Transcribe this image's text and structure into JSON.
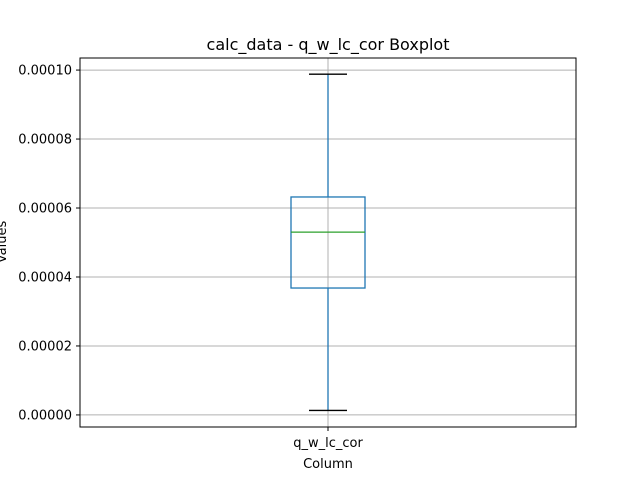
{
  "chart_data": {
    "type": "box",
    "title": "calc_data - q_w_lc_cor Boxplot",
    "xlabel": "Column",
    "ylabel": "Values",
    "categories": [
      "q_w_lc_cor"
    ],
    "series": [
      {
        "name": "q_w_lc_cor",
        "whisker_low": 1.3e-06,
        "q1": 3.68e-05,
        "median": 5.3e-05,
        "q3": 6.32e-05,
        "whisker_high": 9.88e-05
      }
    ],
    "ylim": [
      -3.5e-06,
      0.0001035
    ],
    "yticks": [
      0,
      2e-05,
      4e-05,
      6e-05,
      8e-05,
      0.0001
    ],
    "ytick_labels": [
      "0.00000",
      "0.00002",
      "0.00004",
      "0.00006",
      "0.00008",
      "0.00010"
    ],
    "grid": true,
    "colors": {
      "box": "#1f77b4",
      "median": "#2ca02c",
      "caps": "#000000",
      "grid": "#b0b0b0"
    }
  }
}
